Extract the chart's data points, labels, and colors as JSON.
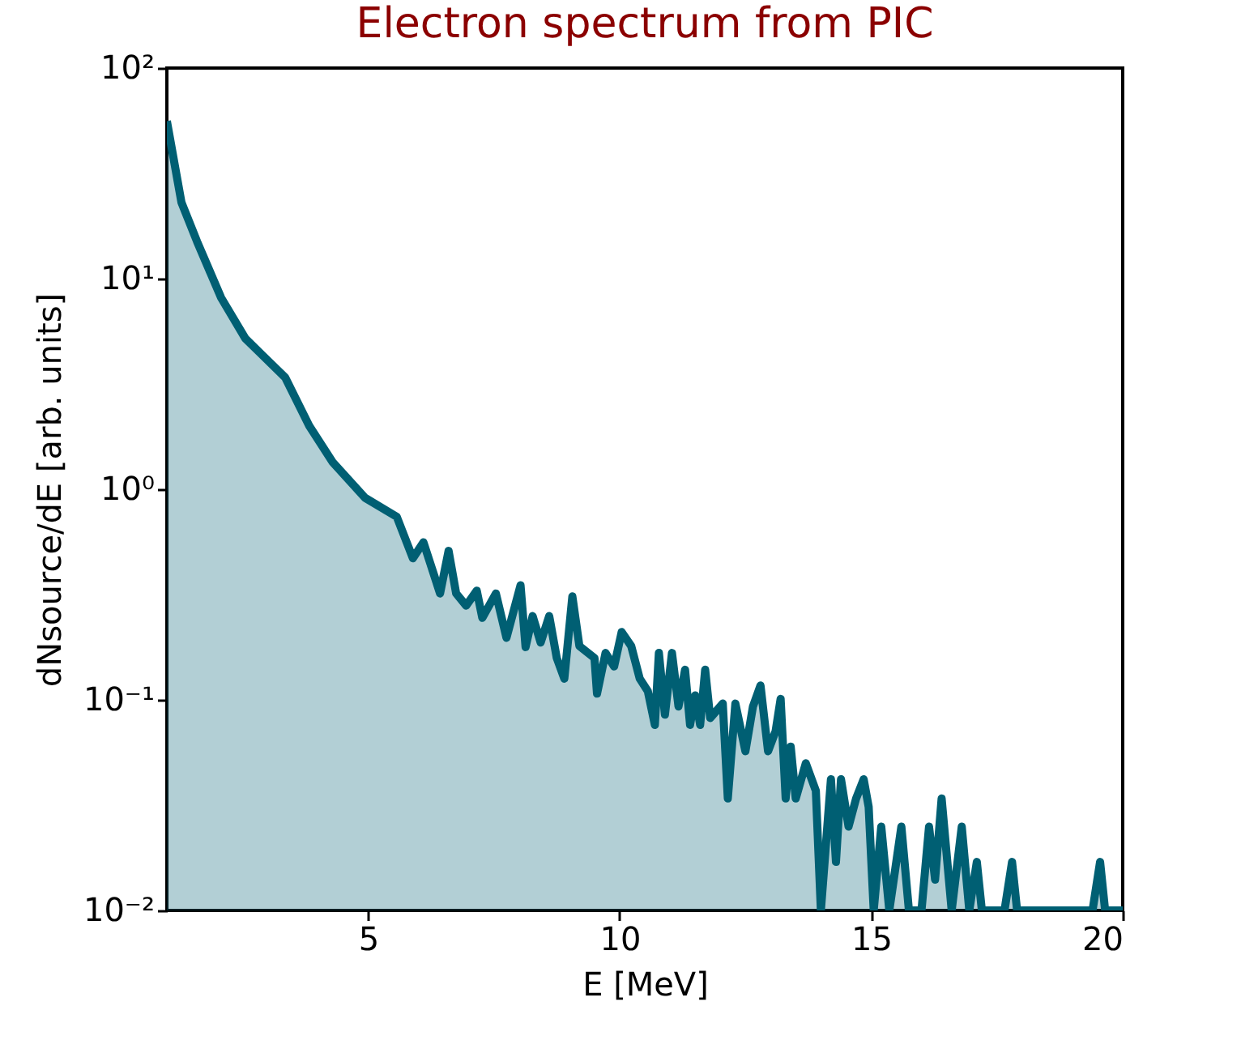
{
  "chart_data": {
    "type": "area",
    "title": "Electron spectrum from PIC",
    "xlabel": "E [MeV]",
    "ylabel": "dNsource/dE [arb. units]",
    "x": [
      1,
      1.29,
      1.6,
      2.08,
      2.56,
      2.87,
      3.35,
      3.83,
      4.3,
      4.94,
      5.57,
      5.89,
      6.1,
      6.43,
      6.6,
      6.75,
      6.95,
      7.16,
      7.27,
      7.54,
      7.75,
      8.03,
      8.13,
      8.27,
      8.43,
      8.6,
      8.75,
      8.9,
      9.06,
      9.2,
      9.5,
      9.55,
      9.72,
      9.89,
      10.04,
      10.23,
      10.4,
      10.56,
      10.7,
      10.78,
      10.9,
      11.04,
      11.17,
      11.3,
      11.4,
      11.5,
      11.6,
      11.7,
      11.8,
      12.05,
      12.15,
      12.3,
      12.5,
      12.65,
      12.8,
      12.95,
      13.1,
      13.2,
      13.3,
      13.4,
      13.5,
      13.7,
      13.9,
      14.0,
      14.2,
      14.3,
      14.4,
      14.55,
      14.7,
      14.85,
      14.95,
      15.05,
      15.2,
      15.36,
      15.6,
      15.75,
      16.0,
      16.15,
      16.27,
      16.4,
      16.6,
      16.8,
      16.95,
      17.1,
      17.2,
      17.65,
      17.8,
      17.9,
      19.4,
      19.55,
      19.65,
      20
    ],
    "series": [
      {
        "color": "#005f73",
        "values": [
          56,
          23,
          15,
          8.1,
          5.2,
          4.4,
          3.4,
          2.0,
          1.34,
          0.91,
          0.74,
          0.47,
          0.56,
          0.32,
          0.51,
          0.32,
          0.28,
          0.33,
          0.245,
          0.32,
          0.197,
          0.35,
          0.178,
          0.25,
          0.187,
          0.25,
          0.158,
          0.126,
          0.31,
          0.18,
          0.158,
          0.107,
          0.167,
          0.144,
          0.21,
          0.18,
          0.126,
          0.11,
          0.076,
          0.167,
          0.085,
          0.167,
          0.093,
          0.139,
          0.076,
          0.105,
          0.076,
          0.139,
          0.082,
          0.096,
          0.034,
          0.096,
          0.057,
          0.093,
          0.117,
          0.057,
          0.071,
          0.101,
          0.034,
          0.06,
          0.034,
          0.05,
          0.037,
          0.01,
          0.042,
          0.017,
          0.042,
          0.025,
          0.034,
          0.042,
          0.031,
          0.01,
          0.025,
          0.01,
          0.025,
          0.01,
          0.01,
          0.025,
          0.014,
          0.034,
          0.01,
          0.025,
          0.01,
          0.017,
          0.01,
          0.01,
          0.017,
          0.01,
          0.01,
          0.017,
          0.01,
          0.01
        ]
      }
    ],
    "log": "y",
    "xlim": [
      1,
      20
    ],
    "xticks": [
      5,
      10,
      15,
      20
    ],
    "ylim": [
      0.01,
      100
    ],
    "yticks": [
      {
        "value": 0.01,
        "label": "10⁻²"
      },
      {
        "value": 0.1,
        "label": "10⁻¹"
      },
      {
        "value": 1,
        "label": "10⁰"
      },
      {
        "value": 10,
        "label": "10¹"
      },
      {
        "value": 100,
        "label": "10²"
      }
    ],
    "grid": false
  }
}
